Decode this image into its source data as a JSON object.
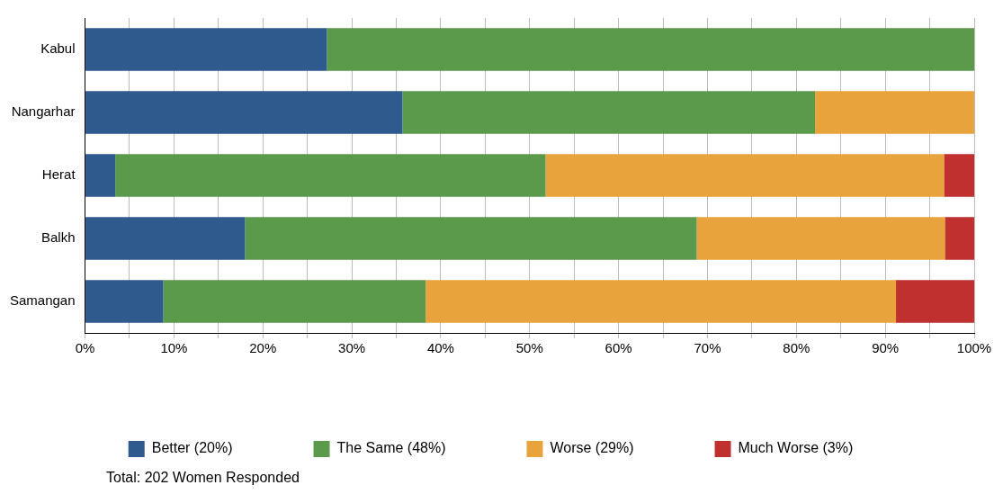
{
  "chart_data": {
    "type": "bar",
    "orientation": "horizontal",
    "stacked": true,
    "categories": [
      "Kabul",
      "Nangarhar",
      "Herat",
      "Balkh",
      "Samangan"
    ],
    "series": [
      {
        "name": "Better (20%)",
        "color": "#2e5a8e",
        "values": [
          27.2,
          35.7,
          3.4,
          18,
          8.8
        ]
      },
      {
        "name": "The Same (48%)",
        "color": "#5b9a4a",
        "values": [
          72.8,
          46.4,
          48.4,
          50.8,
          29.5
        ]
      },
      {
        "name": "Worse (29%)",
        "color": "#e8a33d",
        "values": [
          0,
          17.9,
          44.8,
          27.9,
          52.9
        ]
      },
      {
        "name": "Much Worse (3%)",
        "color": "#c0302f",
        "values": [
          0,
          0,
          3.4,
          3.3,
          8.8
        ]
      }
    ],
    "xlim": [
      0,
      100
    ],
    "xticks": [
      {
        "value": 0,
        "label": "0%"
      },
      {
        "value": 5,
        "label": null
      },
      {
        "value": 10,
        "label": "10%"
      },
      {
        "value": 15,
        "label": null
      },
      {
        "value": 20,
        "label": "20%"
      },
      {
        "value": 25,
        "label": null
      },
      {
        "value": 30,
        "label": "30%"
      },
      {
        "value": 35,
        "label": null
      },
      {
        "value": 40,
        "label": "40%"
      },
      {
        "value": 45,
        "label": null
      },
      {
        "value": 50,
        "label": "50%"
      },
      {
        "value": 55,
        "label": null
      },
      {
        "value": 60,
        "label": "60%"
      },
      {
        "value": 65,
        "label": null
      },
      {
        "value": 70,
        "label": "70%"
      },
      {
        "value": 75,
        "label": null
      },
      {
        "value": 80,
        "label": "80%"
      },
      {
        "value": 85,
        "label": null
      },
      {
        "value": 90,
        "label": "90%"
      },
      {
        "value": 95,
        "label": null
      },
      {
        "value": 100,
        "label": "100%"
      }
    ],
    "grid": true,
    "legend": "bottom",
    "annotations": [
      "Total: 202 Women Responded"
    ]
  }
}
